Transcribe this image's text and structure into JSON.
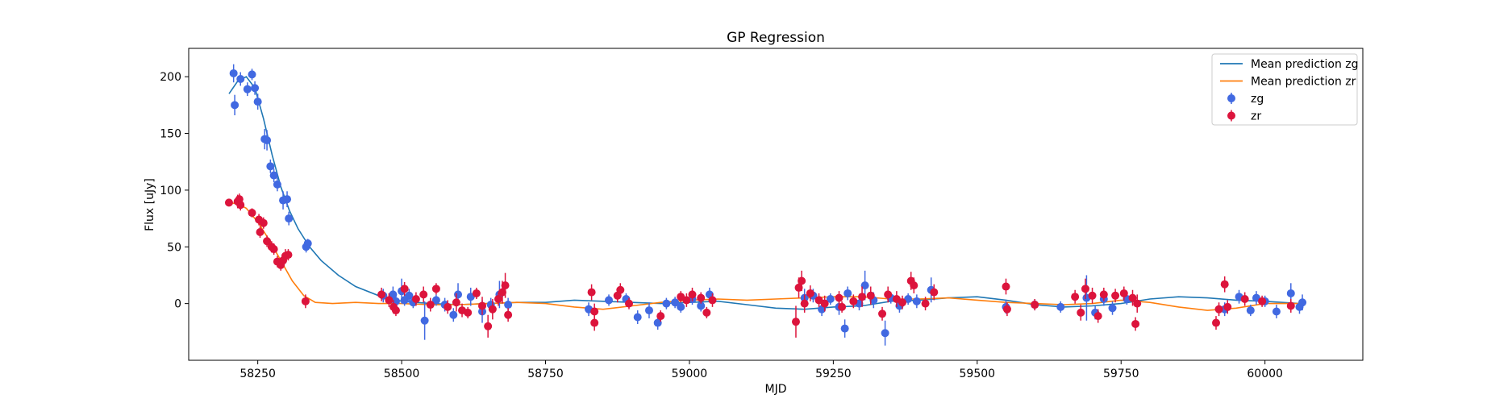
{
  "chart_data": {
    "type": "scatter",
    "title": "GP Regression",
    "xlabel": "MJD",
    "ylabel": "Flux [uJy]",
    "xlim": [
      58130,
      60170
    ],
    "ylim": [
      -50,
      225
    ],
    "xticks": [
      58250,
      58500,
      58750,
      59000,
      59250,
      59500,
      59750,
      60000
    ],
    "yticks": [
      0,
      50,
      100,
      150,
      200
    ],
    "legend_position": "top-right",
    "grid": false,
    "lines": [
      {
        "name": "Mean prediction zg",
        "color": "#1f77b4",
        "x": [
          58200,
          58215,
          58230,
          58245,
          58260,
          58275,
          58290,
          58305,
          58320,
          58340,
          58360,
          58390,
          58420,
          58460,
          58500,
          58550,
          58600,
          58650,
          58700,
          58750,
          58800,
          58850,
          58900,
          58950,
          59000,
          59050,
          59100,
          59150,
          59200,
          59250,
          59300,
          59350,
          59400,
          59450,
          59500,
          59550,
          59600,
          59650,
          59700,
          59750,
          59800,
          59850,
          59900,
          59950,
          60000,
          60060
        ],
        "y": [
          185,
          196,
          200,
          190,
          163,
          131,
          103,
          82,
          66,
          50,
          38,
          25,
          15,
          7,
          2,
          0,
          -1,
          0,
          1,
          1,
          3,
          2,
          1,
          0,
          1,
          2,
          -1,
          -4,
          -5,
          -3,
          -2,
          2,
          3,
          5,
          6,
          3,
          -1,
          -3,
          -2,
          0,
          4,
          6,
          5,
          3,
          2,
          0
        ]
      },
      {
        "name": "Mean prediction zr",
        "color": "#ff7f0e",
        "x": [
          58200,
          58215,
          58230,
          58250,
          58270,
          58290,
          58310,
          58330,
          58350,
          58380,
          58420,
          58460,
          58500,
          58550,
          58600,
          58650,
          58700,
          58750,
          58800,
          58850,
          58900,
          58950,
          59000,
          59050,
          59100,
          59150,
          59200,
          59250,
          59300,
          59350,
          59400,
          59450,
          59500,
          59550,
          59600,
          59650,
          59700,
          59750,
          59800,
          59850,
          59900,
          59950,
          60000,
          60060
        ],
        "y": [
          89,
          88,
          84,
          72,
          56,
          38,
          20,
          7,
          1,
          0,
          1,
          0,
          0,
          -1,
          -1,
          0,
          1,
          0,
          -3,
          -5,
          -2,
          1,
          3,
          4,
          3,
          4,
          5,
          6,
          6,
          4,
          4,
          5,
          3,
          1,
          0,
          -1,
          0,
          3,
          1,
          -3,
          -6,
          -4,
          0,
          0
        ]
      }
    ],
    "series": [
      {
        "name": "zg",
        "color": "#4169e1",
        "points": [
          [
            58208,
            203,
            8
          ],
          [
            58210,
            175,
            9
          ],
          [
            58220,
            198,
            6
          ],
          [
            58232,
            189,
            6
          ],
          [
            58240,
            202,
            5
          ],
          [
            58245,
            190,
            6
          ],
          [
            58250,
            178,
            7
          ],
          [
            58262,
            145,
            9
          ],
          [
            58266,
            144,
            9
          ],
          [
            58272,
            121,
            6
          ],
          [
            58278,
            113,
            6
          ],
          [
            58284,
            105,
            6
          ],
          [
            58294,
            91,
            8
          ],
          [
            58301,
            92,
            7
          ],
          [
            58304,
            75,
            6
          ],
          [
            58334,
            50,
            5
          ],
          [
            58337,
            53,
            4
          ],
          [
            58468,
            7,
            6
          ],
          [
            58485,
            8,
            7
          ],
          [
            58490,
            2,
            5
          ],
          [
            58500,
            11,
            11
          ],
          [
            58505,
            3,
            5
          ],
          [
            58513,
            7,
            6
          ],
          [
            58520,
            1,
            5
          ],
          [
            58540,
            -15,
            17
          ],
          [
            58560,
            3,
            5
          ],
          [
            58575,
            -1,
            6
          ],
          [
            58590,
            -10,
            6
          ],
          [
            58598,
            8,
            10
          ],
          [
            58620,
            6,
            8
          ],
          [
            58640,
            -7,
            10
          ],
          [
            58655,
            -1,
            6
          ],
          [
            58670,
            8,
            12
          ],
          [
            58685,
            -1,
            6
          ],
          [
            58825,
            -5,
            6
          ],
          [
            58860,
            3,
            5
          ],
          [
            58890,
            4,
            5
          ],
          [
            58910,
            -12,
            6
          ],
          [
            58930,
            -6,
            7
          ],
          [
            58945,
            -17,
            6
          ],
          [
            58960,
            0,
            5
          ],
          [
            58975,
            1,
            5
          ],
          [
            58985,
            -3,
            5
          ],
          [
            59005,
            4,
            5
          ],
          [
            59020,
            -2,
            5
          ],
          [
            59035,
            8,
            6
          ],
          [
            59200,
            5,
            8
          ],
          [
            59215,
            7,
            6
          ],
          [
            59230,
            -5,
            6
          ],
          [
            59245,
            4,
            5
          ],
          [
            59260,
            -3,
            7
          ],
          [
            59270,
            -22,
            8
          ],
          [
            59275,
            9,
            6
          ],
          [
            59295,
            0,
            6
          ],
          [
            59305,
            16,
            13
          ],
          [
            59320,
            3,
            7
          ],
          [
            59340,
            -26,
            11
          ],
          [
            59350,
            5,
            5
          ],
          [
            59365,
            -2,
            6
          ],
          [
            59380,
            4,
            5
          ],
          [
            59395,
            2,
            6
          ],
          [
            59420,
            12,
            11
          ],
          [
            59550,
            -3,
            6
          ],
          [
            59600,
            -1,
            5
          ],
          [
            59645,
            -3,
            5
          ],
          [
            59690,
            5,
            20
          ],
          [
            59705,
            -8,
            6
          ],
          [
            59720,
            4,
            6
          ],
          [
            59735,
            -4,
            6
          ],
          [
            59760,
            4,
            5
          ],
          [
            59930,
            -5,
            6
          ],
          [
            59955,
            6,
            6
          ],
          [
            59975,
            -6,
            5
          ],
          [
            59985,
            5,
            6
          ],
          [
            60000,
            2,
            5
          ],
          [
            60020,
            -7,
            6
          ],
          [
            60045,
            9,
            9
          ],
          [
            60060,
            -3,
            6
          ],
          [
            60065,
            1,
            7
          ]
        ]
      },
      {
        "name": "zr",
        "color": "#dc143c",
        "points": [
          [
            58200,
            89,
            3
          ],
          [
            58215,
            90,
            6
          ],
          [
            58218,
            92,
            5
          ],
          [
            58220,
            87,
            5
          ],
          [
            58240,
            80,
            4
          ],
          [
            58252,
            74,
            5
          ],
          [
            58254,
            63,
            5
          ],
          [
            58260,
            71,
            5
          ],
          [
            58266,
            55,
            5
          ],
          [
            58274,
            50,
            5
          ],
          [
            58278,
            48,
            5
          ],
          [
            58284,
            37,
            5
          ],
          [
            58290,
            34,
            5
          ],
          [
            58294,
            38,
            6
          ],
          [
            58298,
            42,
            6
          ],
          [
            58303,
            43,
            5
          ],
          [
            58333,
            2,
            6
          ],
          [
            58465,
            8,
            6
          ],
          [
            58478,
            3,
            6
          ],
          [
            58486,
            -3,
            6
          ],
          [
            58490,
            -6,
            5
          ],
          [
            58505,
            13,
            6
          ],
          [
            58525,
            4,
            6
          ],
          [
            58538,
            8,
            7
          ],
          [
            58550,
            -1,
            6
          ],
          [
            58560,
            13,
            5
          ],
          [
            58580,
            -3,
            6
          ],
          [
            58595,
            1,
            8
          ],
          [
            58605,
            -6,
            6
          ],
          [
            58615,
            -8,
            5
          ],
          [
            58630,
            9,
            5
          ],
          [
            58640,
            -2,
            8
          ],
          [
            58650,
            -20,
            10
          ],
          [
            58658,
            -5,
            9
          ],
          [
            58668,
            4,
            6
          ],
          [
            58675,
            10,
            10
          ],
          [
            58680,
            16,
            11
          ],
          [
            58685,
            -10,
            6
          ],
          [
            58830,
            10,
            7
          ],
          [
            58835,
            -17,
            7
          ],
          [
            58835,
            -7,
            7
          ],
          [
            58875,
            7,
            6
          ],
          [
            58880,
            12,
            6
          ],
          [
            58895,
            0,
            5
          ],
          [
            58950,
            -11,
            5
          ],
          [
            58985,
            6,
            5
          ],
          [
            58995,
            3,
            6
          ],
          [
            59005,
            8,
            6
          ],
          [
            59020,
            5,
            5
          ],
          [
            59030,
            -8,
            5
          ],
          [
            59040,
            3,
            6
          ],
          [
            59185,
            -16,
            14
          ],
          [
            59190,
            14,
            9
          ],
          [
            59195,
            20,
            9
          ],
          [
            59200,
            0,
            8
          ],
          [
            59210,
            9,
            7
          ],
          [
            59225,
            3,
            6
          ],
          [
            59235,
            0,
            7
          ],
          [
            59260,
            5,
            6
          ],
          [
            59265,
            -3,
            5
          ],
          [
            59285,
            2,
            6
          ],
          [
            59300,
            6,
            9
          ],
          [
            59315,
            7,
            8
          ],
          [
            59335,
            -9,
            6
          ],
          [
            59345,
            8,
            7
          ],
          [
            59360,
            4,
            7
          ],
          [
            59370,
            1,
            6
          ],
          [
            59385,
            20,
            8
          ],
          [
            59390,
            16,
            7
          ],
          [
            59410,
            0,
            6
          ],
          [
            59425,
            10,
            7
          ],
          [
            59550,
            15,
            7
          ],
          [
            59552,
            -5,
            6
          ],
          [
            59600,
            -1,
            5
          ],
          [
            59670,
            6,
            6
          ],
          [
            59680,
            -8,
            7
          ],
          [
            59688,
            13,
            9
          ],
          [
            59700,
            7,
            7
          ],
          [
            59710,
            -11,
            6
          ],
          [
            59720,
            8,
            6
          ],
          [
            59740,
            7,
            6
          ],
          [
            59755,
            9,
            6
          ],
          [
            59770,
            5,
            7
          ],
          [
            59775,
            -18,
            6
          ],
          [
            59778,
            0,
            8
          ],
          [
            59915,
            -17,
            6
          ],
          [
            59920,
            -5,
            6
          ],
          [
            59930,
            17,
            7
          ],
          [
            59935,
            -3,
            6
          ],
          [
            59965,
            4,
            6
          ],
          [
            59995,
            2,
            5
          ],
          [
            60045,
            -2,
            6
          ]
        ]
      }
    ]
  }
}
